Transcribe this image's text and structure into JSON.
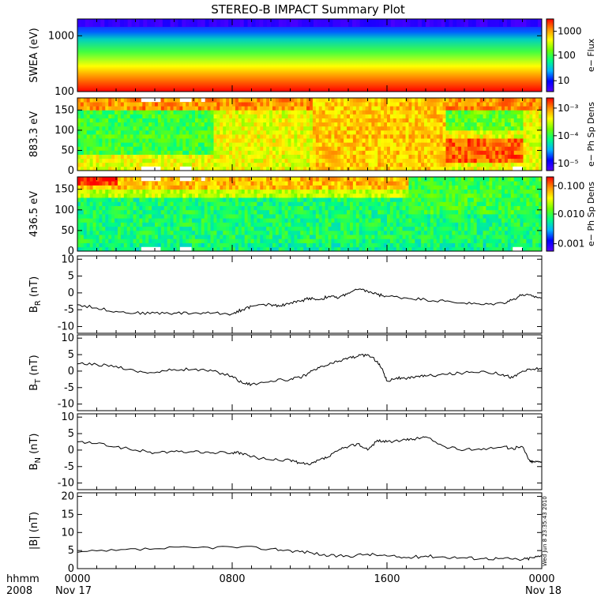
{
  "title": "STEREO-B IMPACT Summary Plot",
  "footer": {
    "hhmm_label": "hhmm",
    "year_label": "2008",
    "start_date": "Nov 17",
    "end_date": "Nov 18",
    "time_ticks": [
      "0000",
      "0800",
      "1600",
      "0000"
    ]
  },
  "side_stamp": "Wed Jun  8 23:35:43 2010",
  "colors": {
    "line": "#000000",
    "colormap": [
      "#5500ff",
      "#0000ff",
      "#00b4ff",
      "#00ff80",
      "#70ff00",
      "#ffff00",
      "#ff9000",
      "#ff0000"
    ]
  },
  "chart_data": [
    {
      "type": "heatmap",
      "ylabel": "SWEA (eV)",
      "yscale": "log",
      "ylim": [
        100,
        2000
      ],
      "yticks": [
        "100",
        "1000"
      ],
      "colorbar": {
        "label": "e− Flux",
        "scale": "log",
        "ticks": [
          "10",
          "100",
          "1000"
        ],
        "range": [
          3,
          3000
        ]
      },
      "xlim_hours": [
        0,
        24
      ],
      "description_values": {
        "low_energy_level": 0.92,
        "high_energy_level": 0.05
      }
    },
    {
      "type": "heatmap",
      "ylabel": "883.3 eV",
      "ylim": [
        0,
        180
      ],
      "yticks": [
        "0",
        "50",
        "100",
        "150"
      ],
      "colorbar": {
        "label": "e− Ph Sp Dens",
        "scale": "log",
        "ticks": [
          "10⁻⁵",
          "10⁻⁴",
          "10⁻³"
        ],
        "range": [
          5e-06,
          0.002
        ]
      },
      "xlim_hours": [
        0,
        24
      ]
    },
    {
      "type": "heatmap",
      "ylabel": "436.5 eV",
      "ylim": [
        0,
        180
      ],
      "yticks": [
        "0",
        "50",
        "100",
        "150"
      ],
      "colorbar": {
        "label": "e− Ph Sp Dens",
        "scale": "log",
        "ticks": [
          "0.001",
          "0.010",
          "0.100"
        ],
        "range": [
          0.0007,
          0.15
        ]
      },
      "xlim_hours": [
        0,
        24
      ]
    },
    {
      "type": "line",
      "ylabel_main": "B",
      "ylabel_sub": "R",
      "ylabel_unit": " (nT)",
      "ylim": [
        -12,
        11
      ],
      "yticks": [
        "-10",
        "-5",
        "0",
        "5",
        "10"
      ],
      "x": [
        0,
        1,
        2,
        3,
        4,
        5,
        6,
        7,
        8,
        8.5,
        9,
        10,
        10.5,
        11,
        11.5,
        12,
        12.5,
        13,
        13.5,
        14,
        14.5,
        15,
        15.5,
        16,
        17,
        18,
        19,
        20,
        21,
        22,
        22.5,
        23,
        23.5,
        24
      ],
      "y": [
        -3.5,
        -4.5,
        -5.5,
        -6,
        -6,
        -6,
        -6,
        -6,
        -6.2,
        -5,
        -4,
        -3.5,
        -3.8,
        -3,
        -2.5,
        -1.5,
        -2,
        -1,
        -1.5,
        0,
        1,
        0.5,
        -0.5,
        -1,
        -1.5,
        -2,
        -2.5,
        -3,
        -3.5,
        -3,
        -2,
        -0.5,
        -1,
        -1.5
      ]
    },
    {
      "type": "line",
      "ylabel_main": "B",
      "ylabel_sub": "T",
      "ylabel_unit": " (nT)",
      "ylim": [
        -12,
        11
      ],
      "yticks": [
        "-10",
        "-5",
        "0",
        "5",
        "10"
      ],
      "x": [
        0,
        1,
        2,
        3,
        4,
        5,
        6,
        7,
        8,
        8.5,
        9,
        10,
        11,
        11.5,
        12,
        12.5,
        13,
        13.5,
        14,
        14.5,
        15,
        15.5,
        15.8,
        16,
        16.5,
        17,
        17.5,
        18,
        19,
        20,
        21,
        22,
        22.5,
        23,
        23.5,
        24
      ],
      "y": [
        2.2,
        2,
        1.5,
        0,
        -0.5,
        0.5,
        0.5,
        0,
        -1.5,
        -3.5,
        -4,
        -3,
        -2.5,
        -2,
        -0.5,
        1,
        2,
        3,
        4,
        4.5,
        5,
        3,
        0,
        -3,
        -2,
        -2.5,
        -1.5,
        -1.5,
        -1,
        -0.5,
        0,
        -1,
        -2,
        0,
        0.5,
        1
      ]
    },
    {
      "type": "line",
      "ylabel_main": "B",
      "ylabel_sub": "N",
      "ylabel_unit": " (nT)",
      "ylim": [
        -12,
        11
      ],
      "yticks": [
        "-10",
        "-5",
        "0",
        "5",
        "10"
      ],
      "x": [
        0,
        1,
        2,
        3,
        4,
        5,
        6,
        7,
        8,
        8.5,
        9,
        10,
        11,
        11.5,
        12,
        12.5,
        13,
        13.5,
        14,
        14.5,
        15,
        15.5,
        16,
        17,
        17.5,
        18,
        19,
        20,
        21,
        22,
        22.5,
        23,
        23.4,
        23.6,
        24
      ],
      "y": [
        2.5,
        2,
        1,
        0,
        -0.8,
        -0.5,
        -0.5,
        -0.8,
        -0.8,
        -1,
        -2,
        -3,
        -3,
        -4,
        -4.5,
        -3,
        -2,
        0,
        1,
        2,
        0,
        3,
        2.5,
        3,
        3.5,
        4,
        1,
        0,
        0.5,
        1,
        0.5,
        1,
        -3.5,
        -3.5,
        -3.5
      ]
    },
    {
      "type": "line",
      "ylabel_main": "|B| (nT)",
      "ylim": [
        0,
        21
      ],
      "yticks": [
        "0",
        "5",
        "10",
        "15",
        "20"
      ],
      "x": [
        0,
        2,
        4,
        6,
        8,
        10,
        11,
        12,
        13,
        14,
        15,
        16,
        17,
        18,
        19,
        20,
        21,
        22,
        23,
        23.5,
        24
      ],
      "y": [
        4.5,
        5,
        5.5,
        5.8,
        6,
        5.5,
        5,
        4.5,
        3.5,
        3.5,
        4,
        3.5,
        3,
        3.5,
        3.2,
        3,
        2.8,
        2.8,
        2.5,
        3,
        3.5
      ]
    }
  ]
}
